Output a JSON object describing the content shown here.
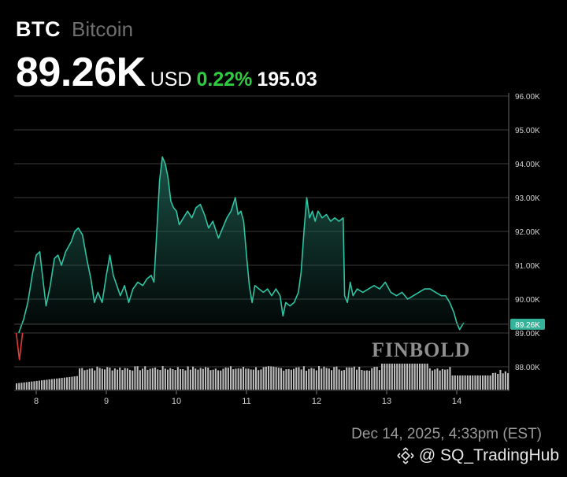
{
  "header": {
    "symbol": "BTC",
    "name": "Bitcoin",
    "price": "89.26K",
    "currency": "USD",
    "change_pct": "0.22%",
    "change_abs": "195.03"
  },
  "colors": {
    "background": "#000000",
    "line": "#2ec4a3",
    "area": "#1f5f52",
    "positive": "#2ecc40",
    "price_tag": "#35b39a",
    "negative_marker": "#e53935",
    "volume": "#bdbdbd",
    "grid": "#3a3a3a"
  },
  "timestamp": "Dec 14, 2025, 4:33pm (EST)",
  "watermark": {
    "chart_source": "FINBOLD",
    "author": "@ SQ_TradingHub"
  },
  "chart_data": {
    "type": "area",
    "title": "",
    "xlabel": "",
    "ylabel": "",
    "x_ticks": [
      "8",
      "9",
      "10",
      "11",
      "12",
      "13",
      "14"
    ],
    "y_ticks": [
      "96.00K",
      "95.00K",
      "94.00K",
      "93.00K",
      "92.00K",
      "91.00K",
      "90.00K",
      "89.00K",
      "88.00K"
    ],
    "ylim": [
      87.5,
      96
    ],
    "xlim": [
      7.7,
      14.75
    ],
    "last_price_label": "89.26K",
    "last_price": 89.26,
    "grid": true,
    "series": [
      {
        "values": [
          [
            7.75,
            89.0
          ],
          [
            7.82,
            89.4
          ],
          [
            7.88,
            89.9
          ],
          [
            7.95,
            90.8
          ],
          [
            8.0,
            91.3
          ],
          [
            8.05,
            91.4
          ],
          [
            8.1,
            90.5
          ],
          [
            8.14,
            89.8
          ],
          [
            8.2,
            90.4
          ],
          [
            8.26,
            91.2
          ],
          [
            8.31,
            91.3
          ],
          [
            8.36,
            91.0
          ],
          [
            8.42,
            91.4
          ],
          [
            8.5,
            91.7
          ],
          [
            8.55,
            92.0
          ],
          [
            8.6,
            92.1
          ],
          [
            8.66,
            91.9
          ],
          [
            8.72,
            91.2
          ],
          [
            8.78,
            90.6
          ],
          [
            8.83,
            89.9
          ],
          [
            8.88,
            90.2
          ],
          [
            8.94,
            89.9
          ],
          [
            9.0,
            90.7
          ],
          [
            9.05,
            91.3
          ],
          [
            9.1,
            90.7
          ],
          [
            9.15,
            90.4
          ],
          [
            9.2,
            90.1
          ],
          [
            9.26,
            90.4
          ],
          [
            9.32,
            89.9
          ],
          [
            9.38,
            90.3
          ],
          [
            9.45,
            90.5
          ],
          [
            9.52,
            90.4
          ],
          [
            9.58,
            90.6
          ],
          [
            9.64,
            90.7
          ],
          [
            9.68,
            90.5
          ],
          [
            9.72,
            92.0
          ],
          [
            9.76,
            93.5
          ],
          [
            9.8,
            94.2
          ],
          [
            9.84,
            94.0
          ],
          [
            9.88,
            93.6
          ],
          [
            9.92,
            92.9
          ],
          [
            9.96,
            92.7
          ],
          [
            10.0,
            92.6
          ],
          [
            10.04,
            92.2
          ],
          [
            10.1,
            92.4
          ],
          [
            10.16,
            92.6
          ],
          [
            10.22,
            92.4
          ],
          [
            10.28,
            92.7
          ],
          [
            10.34,
            92.8
          ],
          [
            10.4,
            92.5
          ],
          [
            10.46,
            92.1
          ],
          [
            10.52,
            92.3
          ],
          [
            10.6,
            91.8
          ],
          [
            10.66,
            92.1
          ],
          [
            10.72,
            92.4
          ],
          [
            10.78,
            92.6
          ],
          [
            10.84,
            93.0
          ],
          [
            10.88,
            92.5
          ],
          [
            10.92,
            92.6
          ],
          [
            10.96,
            92.3
          ],
          [
            11.0,
            91.3
          ],
          [
            11.04,
            90.4
          ],
          [
            11.08,
            89.9
          ],
          [
            11.12,
            90.4
          ],
          [
            11.18,
            90.3
          ],
          [
            11.24,
            90.2
          ],
          [
            11.3,
            90.3
          ],
          [
            11.36,
            90.1
          ],
          [
            11.42,
            90.3
          ],
          [
            11.48,
            90.1
          ],
          [
            11.52,
            89.5
          ],
          [
            11.56,
            89.9
          ],
          [
            11.62,
            89.8
          ],
          [
            11.68,
            89.9
          ],
          [
            11.74,
            90.2
          ],
          [
            11.78,
            90.8
          ],
          [
            11.82,
            92.0
          ],
          [
            11.86,
            93.0
          ],
          [
            11.9,
            92.4
          ],
          [
            11.94,
            92.6
          ],
          [
            11.98,
            92.3
          ],
          [
            12.02,
            92.6
          ],
          [
            12.08,
            92.4
          ],
          [
            12.14,
            92.5
          ],
          [
            12.2,
            92.3
          ],
          [
            12.26,
            92.4
          ],
          [
            12.32,
            92.3
          ],
          [
            12.38,
            92.4
          ],
          [
            12.4,
            90.1
          ],
          [
            12.44,
            89.9
          ],
          [
            12.48,
            90.5
          ],
          [
            12.52,
            90.1
          ],
          [
            12.58,
            90.3
          ],
          [
            12.66,
            90.2
          ],
          [
            12.74,
            90.3
          ],
          [
            12.82,
            90.4
          ],
          [
            12.9,
            90.3
          ],
          [
            12.98,
            90.5
          ],
          [
            13.06,
            90.2
          ],
          [
            13.14,
            90.1
          ],
          [
            13.22,
            90.2
          ],
          [
            13.3,
            90.0
          ],
          [
            13.38,
            90.1
          ],
          [
            13.46,
            90.2
          ],
          [
            13.54,
            90.3
          ],
          [
            13.62,
            90.3
          ],
          [
            13.7,
            90.2
          ],
          [
            13.78,
            90.1
          ],
          [
            13.84,
            90.1
          ],
          [
            13.9,
            89.9
          ],
          [
            13.96,
            89.6
          ],
          [
            14.0,
            89.3
          ],
          [
            14.04,
            89.1
          ],
          [
            14.1,
            89.3
          ]
        ]
      }
    ],
    "initial_drop_marker": [
      7.76,
      88.2
    ]
  }
}
